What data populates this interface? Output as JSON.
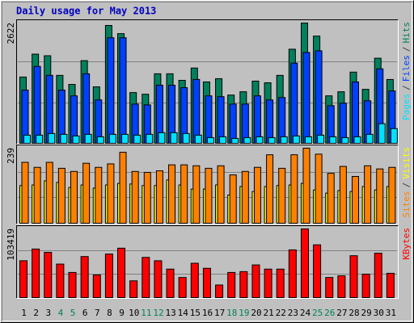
{
  "chart_data": [
    {
      "type": "bar",
      "title": "Daily usage for May 2013",
      "legend_separator": "/",
      "ylim": [
        0,
        2622
      ],
      "yticks": [
        2622
      ],
      "grid": true,
      "series": [
        {
          "name": "Pages",
          "color": "#00e0ff",
          "values": [
            178,
            178,
            214,
            196,
            161,
            196,
            143,
            196,
            196,
            178,
            196,
            232,
            232,
            214,
            178,
            125,
            143,
            107,
            125,
            143,
            125,
            143,
            161,
            143,
            178,
            143,
            125,
            143,
            196,
            428,
            321
          ]
        },
        {
          "name": "Files",
          "color": "#0040ff",
          "values": [
            1160,
            1677,
            1481,
            1160,
            1035,
            1516,
            946,
            2301,
            2301,
            856,
            838,
            1267,
            1267,
            1213,
            1392,
            1035,
            1017,
            856,
            856,
            1035,
            946,
            999,
            1748,
            1980,
            2016,
            821,
            874,
            1338,
            928,
            1623,
            1142
          ]
        },
        {
          "name": "Hits",
          "color": "#00805c",
          "values": [
            1445,
            1944,
            1909,
            1481,
            1284,
            1802,
            1231,
            2569,
            2390,
            1106,
            1070,
            1516,
            1516,
            1373,
            1641,
            1338,
            1409,
            1052,
            1124,
            1356,
            1320,
            1481,
            2051,
            2622,
            2337,
            1035,
            1124,
            1552,
            1177,
            1855,
            1391
          ]
        }
      ]
    },
    {
      "type": "bar",
      "legend_separator": "/",
      "ylim": [
        0,
        239
      ],
      "yticks": [
        239
      ],
      "grid": true,
      "series": [
        {
          "name": "Sites",
          "color": "#ff8000",
          "values": [
            194,
            178,
            194,
            175,
            165,
            191,
            178,
            189,
            226,
            165,
            162,
            167,
            186,
            186,
            183,
            175,
            183,
            154,
            165,
            178,
            218,
            175,
            218,
            239,
            220,
            159,
            181,
            149,
            183,
            173,
            178
          ]
        },
        {
          "name": "Visits",
          "color": "#ffff00",
          "values": [
            120,
            122,
            135,
            130,
            114,
            122,
            112,
            122,
            127,
            125,
            120,
            120,
            138,
            122,
            109,
            109,
            122,
            90,
            117,
            101,
            117,
            120,
            122,
            127,
            106,
            96,
            104,
            101,
            117,
            106,
            117
          ]
        }
      ]
    },
    {
      "type": "bar",
      "ylim": [
        0,
        103419
      ],
      "yticks": [
        103419
      ],
      "grid": true,
      "categories": [
        "1",
        "2",
        "3",
        "4",
        "5",
        "6",
        "7",
        "8",
        "9",
        "10",
        "11",
        "12",
        "13",
        "14",
        "15",
        "16",
        "17",
        "18",
        "19",
        "20",
        "21",
        "22",
        "23",
        "24",
        "25",
        "26",
        "27",
        "28",
        "29",
        "30",
        "31"
      ],
      "category_colors": [
        "#000000",
        "#000000",
        "#000000",
        "#00805c",
        "#00805c",
        "#000000",
        "#000000",
        "#000000",
        "#000000",
        "#000000",
        "#00805c",
        "#00805c",
        "#000000",
        "#000000",
        "#000000",
        "#000000",
        "#000000",
        "#00805c",
        "#00805c",
        "#000000",
        "#000000",
        "#000000",
        "#000000",
        "#000000",
        "#00805c",
        "#00805c",
        "#000000",
        "#000000",
        "#000000",
        "#000000",
        "#000000"
      ],
      "series": [
        {
          "name": "KBytes",
          "color": "#ff0000",
          "values": [
            55484,
            73138,
            68094,
            50440,
            37830,
            61789,
            34047,
            65572,
            74399,
            25220,
            60528,
            55484,
            42874,
            30264,
            51701,
            44135,
            18915,
            37830,
            39091,
            49179,
            42874,
            42874,
            71877,
            103419,
            79443,
            30264,
            32786,
            63050,
            35308,
            66833,
            36569
          ]
        }
      ]
    }
  ]
}
